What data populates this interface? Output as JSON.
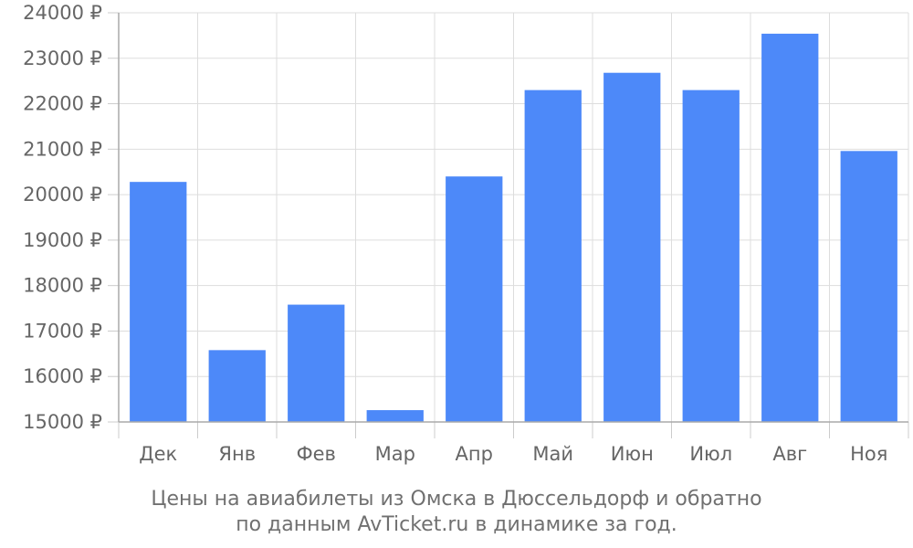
{
  "chart_data": {
    "type": "bar",
    "categories": [
      "Дек",
      "Янв",
      "Фев",
      "Мар",
      "Апр",
      "Май",
      "Июн",
      "Июл",
      "Авг",
      "Ноя"
    ],
    "values": [
      20280,
      16580,
      17580,
      15260,
      20400,
      22300,
      22680,
      22300,
      23540,
      20960
    ],
    "ylim": [
      15000,
      24000
    ],
    "yticks": [
      "15000 ₽",
      "16000 ₽",
      "17000 ₽",
      "18000 ₽",
      "19000 ₽",
      "20000 ₽",
      "21000 ₽",
      "22000 ₽",
      "23000 ₽",
      "24000 ₽"
    ],
    "grid": true,
    "bar_color": "#4d89f9",
    "caption_line1": "Цены на авиабилеты из Омска в Дюссельдорф и обратно",
    "caption_line2": "по данным AvTicket.ru в динамике за год."
  }
}
